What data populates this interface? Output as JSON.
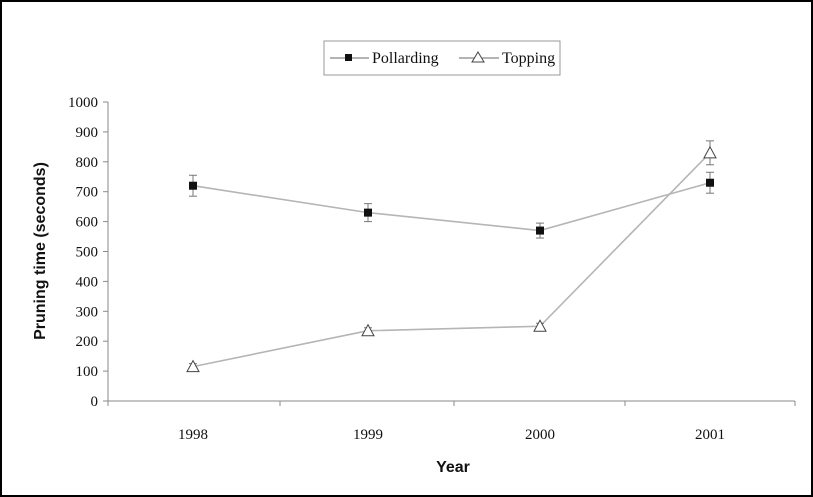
{
  "chart_data": {
    "type": "line",
    "title": "",
    "xlabel": "Year",
    "ylabel": "Pruning time (seconds)",
    "categories": [
      "1998",
      "1999",
      "2000",
      "2001"
    ],
    "ylim": [
      0,
      1000
    ],
    "yticks": [
      0,
      100,
      200,
      300,
      400,
      500,
      600,
      700,
      800,
      900,
      1000
    ],
    "grid": false,
    "legend_position": "top-center",
    "series": [
      {
        "name": "Pollarding",
        "marker": "filled-square",
        "color": "#111111",
        "values": [
          720,
          630,
          570,
          730
        ],
        "error": [
          35,
          30,
          25,
          35
        ]
      },
      {
        "name": "Topping",
        "marker": "open-triangle",
        "color": "#444444",
        "values": [
          115,
          235,
          250,
          830
        ],
        "error": [
          10,
          10,
          10,
          40
        ]
      }
    ],
    "line_color": "#b5b5b5",
    "axis_color": "#8a8a8a"
  }
}
